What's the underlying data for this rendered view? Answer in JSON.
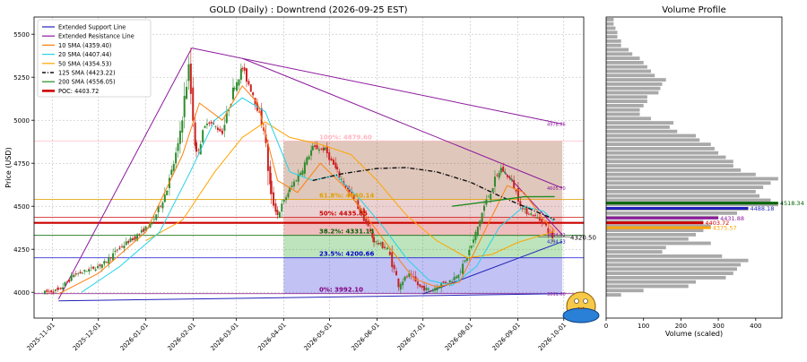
{
  "chart_data": [
    {
      "type": "candlestick",
      "title": "GOLD (Daily) : Downtrend (2026-09-25 EST)",
      "ylabel": "Price (USD)",
      "xlabel": "",
      "ylim": [
        3850,
        5600
      ],
      "xrange": [
        "2025-10-20",
        "2026-10-14"
      ],
      "y_ticks": [
        4000,
        4250,
        4500,
        4750,
        5000,
        5250,
        5500
      ],
      "x_ticks": [
        "2025-11-01",
        "2025-12-01",
        "2026-01-01",
        "2026-02-01",
        "2026-03-01",
        "2026-04-01",
        "2026-05-01",
        "2026-06-01",
        "2026-07-01",
        "2026-08-01",
        "2026-09-01",
        "2026-10-01"
      ],
      "grid": true,
      "legend_position": "top-left",
      "legend": [
        {
          "label": "Extended Support Line",
          "color": "#2222bb",
          "style": "solid"
        },
        {
          "label": "Extended Resistance Line",
          "color": "#8b1a9b",
          "style": "solid"
        },
        {
          "label": "10 SMA (4359.40)",
          "color": "#ff7f0e",
          "style": "solid"
        },
        {
          "label": "20 SMA (4407.44)",
          "color": "#22d3e6",
          "style": "solid"
        },
        {
          "label": "50 SMA (4354.53)",
          "color": "#ffa500",
          "style": "solid"
        },
        {
          "label": "125 SMA (4423.22)",
          "color": "#111111",
          "style": "dashdot"
        },
        {
          "label": "200 SMA (4556.05)",
          "color": "#228b22",
          "style": "solid"
        },
        {
          "label": "POC: 4403.72",
          "color": "#cc0000",
          "style": "thick"
        }
      ],
      "price_path": [
        [
          "2025-10-27",
          4000
        ],
        [
          "2025-11-05",
          4010
        ],
        [
          "2025-11-15",
          4100
        ],
        [
          "2025-11-25",
          4130
        ],
        [
          "2025-12-05",
          4170
        ],
        [
          "2025-12-15",
          4260
        ],
        [
          "2025-12-25",
          4320
        ],
        [
          "2026-01-05",
          4400
        ],
        [
          "2026-01-15",
          4600
        ],
        [
          "2026-01-22",
          4850
        ],
        [
          "2026-01-29",
          5300
        ],
        [
          "2026-02-03",
          4800
        ],
        [
          "2026-02-10",
          5000
        ],
        [
          "2026-02-20",
          4930
        ],
        [
          "2026-02-28",
          5200
        ],
        [
          "2026-03-05",
          5300
        ],
        [
          "2026-03-12",
          5150
        ],
        [
          "2026-03-19",
          4950
        ],
        [
          "2026-03-24",
          4550
        ],
        [
          "2026-03-28",
          4450
        ],
        [
          "2026-04-05",
          4600
        ],
        [
          "2026-04-12",
          4700
        ],
        [
          "2026-04-20",
          4840
        ],
        [
          "2026-04-28",
          4830
        ],
        [
          "2026-05-06",
          4700
        ],
        [
          "2026-05-14",
          4580
        ],
        [
          "2026-05-22",
          4460
        ],
        [
          "2026-05-30",
          4300
        ],
        [
          "2026-06-08",
          4250
        ],
        [
          "2026-06-15",
          4050
        ],
        [
          "2026-06-22",
          4100
        ],
        [
          "2026-06-29",
          4030
        ],
        [
          "2026-07-06",
          4010
        ],
        [
          "2026-07-13",
          4050
        ],
        [
          "2026-07-20",
          4070
        ],
        [
          "2026-07-27",
          4150
        ],
        [
          "2026-08-03",
          4300
        ],
        [
          "2026-08-10",
          4500
        ],
        [
          "2026-08-17",
          4650
        ],
        [
          "2026-08-21",
          4720
        ],
        [
          "2026-08-28",
          4650
        ],
        [
          "2026-09-04",
          4480
        ],
        [
          "2026-09-11",
          4450
        ],
        [
          "2026-09-18",
          4400
        ],
        [
          "2026-09-25",
          4300
        ]
      ],
      "sma_10": [
        [
          "2025-11-05",
          3990
        ],
        [
          "2025-12-01",
          4110
        ],
        [
          "2026-01-01",
          4350
        ],
        [
          "2026-01-25",
          4800
        ],
        [
          "2026-02-05",
          5100
        ],
        [
          "2026-02-20",
          5000
        ],
        [
          "2026-03-05",
          5200
        ],
        [
          "2026-03-15",
          5100
        ],
        [
          "2026-03-28",
          4650
        ],
        [
          "2026-04-10",
          4580
        ],
        [
          "2026-04-25",
          4750
        ],
        [
          "2026-05-10",
          4620
        ],
        [
          "2026-05-25",
          4440
        ],
        [
          "2026-06-10",
          4250
        ],
        [
          "2026-06-25",
          4080
        ],
        [
          "2026-07-10",
          4030
        ],
        [
          "2026-07-25",
          4060
        ],
        [
          "2026-08-10",
          4350
        ],
        [
          "2026-08-25",
          4620
        ],
        [
          "2026-09-05",
          4580
        ],
        [
          "2026-09-18",
          4420
        ],
        [
          "2026-09-25",
          4359
        ]
      ],
      "sma_20": [
        [
          "2025-11-20",
          4000
        ],
        [
          "2025-12-15",
          4150
        ],
        [
          "2026-01-10",
          4350
        ],
        [
          "2026-01-30",
          4700
        ],
        [
          "2026-02-15",
          5000
        ],
        [
          "2026-03-05",
          5130
        ],
        [
          "2026-03-20",
          5050
        ],
        [
          "2026-04-05",
          4700
        ],
        [
          "2026-04-20",
          4650
        ],
        [
          "2026-05-05",
          4680
        ],
        [
          "2026-05-20",
          4550
        ],
        [
          "2026-06-05",
          4380
        ],
        [
          "2026-06-20",
          4200
        ],
        [
          "2026-07-05",
          4070
        ],
        [
          "2026-07-20",
          4040
        ],
        [
          "2026-08-05",
          4150
        ],
        [
          "2026-08-20",
          4380
        ],
        [
          "2026-09-05",
          4500
        ],
        [
          "2026-09-18",
          4470
        ],
        [
          "2026-09-25",
          4407
        ]
      ],
      "sma_50": [
        [
          "2026-01-01",
          4300
        ],
        [
          "2026-01-25",
          4420
        ],
        [
          "2026-02-15",
          4700
        ],
        [
          "2026-03-05",
          4900
        ],
        [
          "2026-03-20",
          4990
        ],
        [
          "2026-04-05",
          4900
        ],
        [
          "2026-04-25",
          4860
        ],
        [
          "2026-05-15",
          4800
        ],
        [
          "2026-06-01",
          4650
        ],
        [
          "2026-06-20",
          4450
        ],
        [
          "2026-07-10",
          4300
        ],
        [
          "2026-07-30",
          4200
        ],
        [
          "2026-08-15",
          4220
        ],
        [
          "2026-09-01",
          4290
        ],
        [
          "2026-09-25",
          4354
        ]
      ],
      "sma_125": [
        [
          "2026-04-20",
          4650
        ],
        [
          "2026-05-10",
          4690
        ],
        [
          "2026-06-01",
          4720
        ],
        [
          "2026-06-20",
          4725
        ],
        [
          "2026-07-10",
          4700
        ],
        [
          "2026-08-01",
          4640
        ],
        [
          "2026-08-20",
          4560
        ],
        [
          "2026-09-10",
          4480
        ],
        [
          "2026-09-25",
          4423
        ]
      ],
      "sma_200": [
        [
          "2026-07-20",
          4500
        ],
        [
          "2026-08-15",
          4530
        ],
        [
          "2026-09-05",
          4555
        ],
        [
          "2026-09-25",
          4556
        ]
      ],
      "support_line": [
        [
          "2025-11-05",
          3950
        ],
        [
          "2026-09-30",
          3991.6
        ]
      ],
      "support_line_2": [
        [
          "2026-07-01",
          3990
        ],
        [
          "2026-09-30",
          4294.53
        ]
      ],
      "resistance_line": [
        [
          "2025-11-05",
          3960
        ],
        [
          "2026-01-31",
          5420
        ]
      ],
      "resistance_line_2": [
        [
          "2026-01-31",
          5420
        ],
        [
          "2026-09-30",
          4978.06
        ]
      ],
      "resistance_line_3": [
        [
          "2026-03-05",
          5360
        ],
        [
          "2026-09-30",
          4605.7
        ]
      ],
      "resistance_line_4": [
        [
          "2026-08-21",
          4720
        ],
        [
          "2026-09-30",
          4334.02
        ]
      ],
      "poc": 4403.72,
      "fib_box": {
        "x_start": "2026-04-01",
        "x_end": "2026-09-30"
      },
      "fib_levels": [
        {
          "label": "100%: 4879.60",
          "value": 4879.6,
          "color": "#ffb6c1"
        },
        {
          "label": "61.8%: 4540.14",
          "value": 4540.14,
          "color": "#e0a000"
        },
        {
          "label": "50%: 4435.85",
          "value": 4435.85,
          "color": "#cc0000"
        },
        {
          "label": "38.2%: 4331.13",
          "value": 4331.13,
          "color": "#006400"
        },
        {
          "label": "23.5%: 4200.66",
          "value": 4200.66,
          "color": "#0000cc"
        },
        {
          "label": "0%: 3992.10",
          "value": 3992.1,
          "color": "#800080"
        }
      ],
      "right_labels": [
        {
          "text": "4978.06",
          "value": 4978.06,
          "color": "#8b1a9b"
        },
        {
          "text": "4605.70",
          "value": 4605.7,
          "color": "#8b1a9b"
        },
        {
          "text": "4334.02",
          "value": 4334.02,
          "color": "#8b1a9b"
        },
        {
          "text": "4294.53",
          "value": 4294.53,
          "color": "#2222bb"
        },
        {
          "text": "3991.60",
          "value": 3991.6,
          "color": "#8b1a9b"
        }
      ],
      "current_price_label": {
        "text": "4320.50",
        "value": 4320.5
      }
    },
    {
      "type": "bar-horizontal",
      "title": "Volume Profile",
      "xlabel": "Volume (scaled)",
      "xlim": [
        0,
        470
      ],
      "x_ticks": [
        0,
        100,
        200,
        300,
        400
      ],
      "ylim": [
        3850,
        5600
      ],
      "bins_start": 3975,
      "bin_size": 25,
      "values": [
        40,
        100,
        220,
        240,
        320,
        340,
        350,
        360,
        380,
        310,
        150,
        160,
        280,
        220,
        240,
        260,
        280,
        260,
        300,
        350,
        380,
        460,
        440,
        410,
        400,
        420,
        440,
        460,
        400,
        360,
        340,
        340,
        320,
        300,
        290,
        280,
        250,
        240,
        190,
        170,
        180,
        120,
        90,
        90,
        100,
        110,
        110,
        140,
        145,
        150,
        160,
        130,
        120,
        110,
        100,
        90,
        70,
        60,
        40,
        40,
        30,
        30,
        25,
        20,
        20
      ],
      "highlights": [
        {
          "label": "4518.34",
          "value": 4518.34,
          "color": "#006400"
        },
        {
          "label": "4488.18",
          "value": 4488.18,
          "color": "#2222bb"
        },
        {
          "label": "4431.88",
          "value": 4431.88,
          "color": "#8b1a9b"
        },
        {
          "label": "4403.72",
          "value": 4403.72,
          "color": "#cc0000"
        },
        {
          "label": "4375.57",
          "value": 4375.57,
          "color": "#ffa500"
        }
      ]
    }
  ]
}
